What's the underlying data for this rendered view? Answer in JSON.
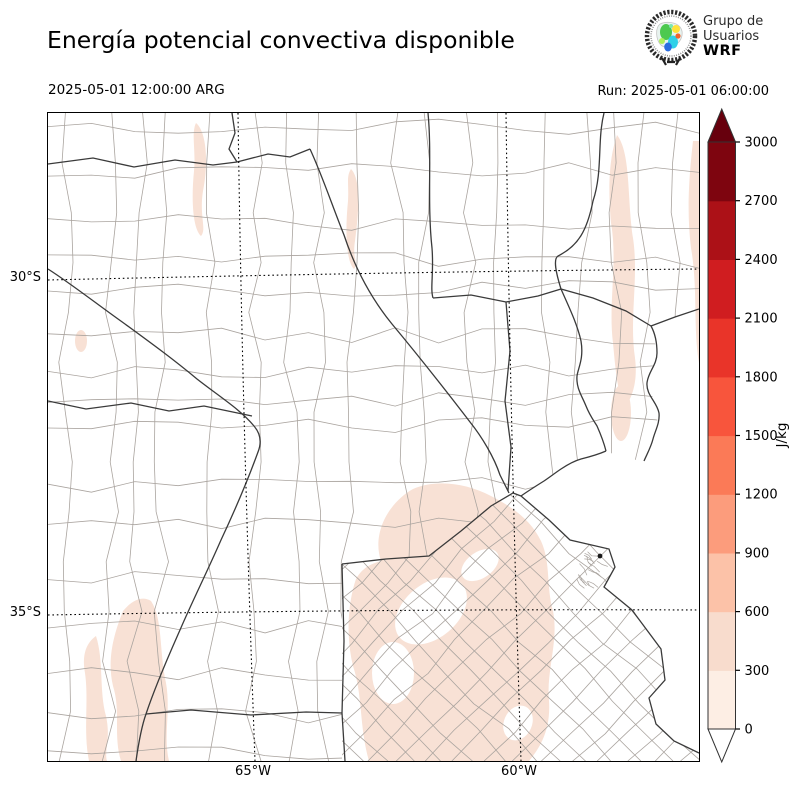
{
  "header": {
    "title": "Energía potencial convectiva disponible",
    "logo": {
      "line1": "Grupo de",
      "line2": "Usuarios",
      "line3": "WRF"
    }
  },
  "times": {
    "valid": "2025-05-01 12:00:00 ARG",
    "run": "Run: 2025-05-01 06:00:00"
  },
  "axes": {
    "lat_labels": [
      "30°S",
      "35°S"
    ],
    "lon_labels": [
      "65°W",
      "60°W"
    ]
  },
  "colorbar": {
    "unit": "J/kg",
    "tick_values": [
      "0",
      "300",
      "600",
      "900",
      "1200",
      "1500",
      "1800",
      "2100",
      "2400",
      "2700",
      "3000"
    ],
    "segment_colors_bottom_to_top": [
      "#fdeee4",
      "#f8dccd",
      "#fcc2a8",
      "#fc9c7c",
      "#fb7a57",
      "#f8553c",
      "#e93429",
      "#d01d20",
      "#ac1117",
      "#7e050f"
    ],
    "under_arrow_color": "#ffffff",
    "over_arrow_color": "#67000d"
  },
  "map": {
    "shading_color_low": "#f8e1d5",
    "department_line_color": "#aaa49f",
    "province_line_color": "#3a3a3a"
  }
}
